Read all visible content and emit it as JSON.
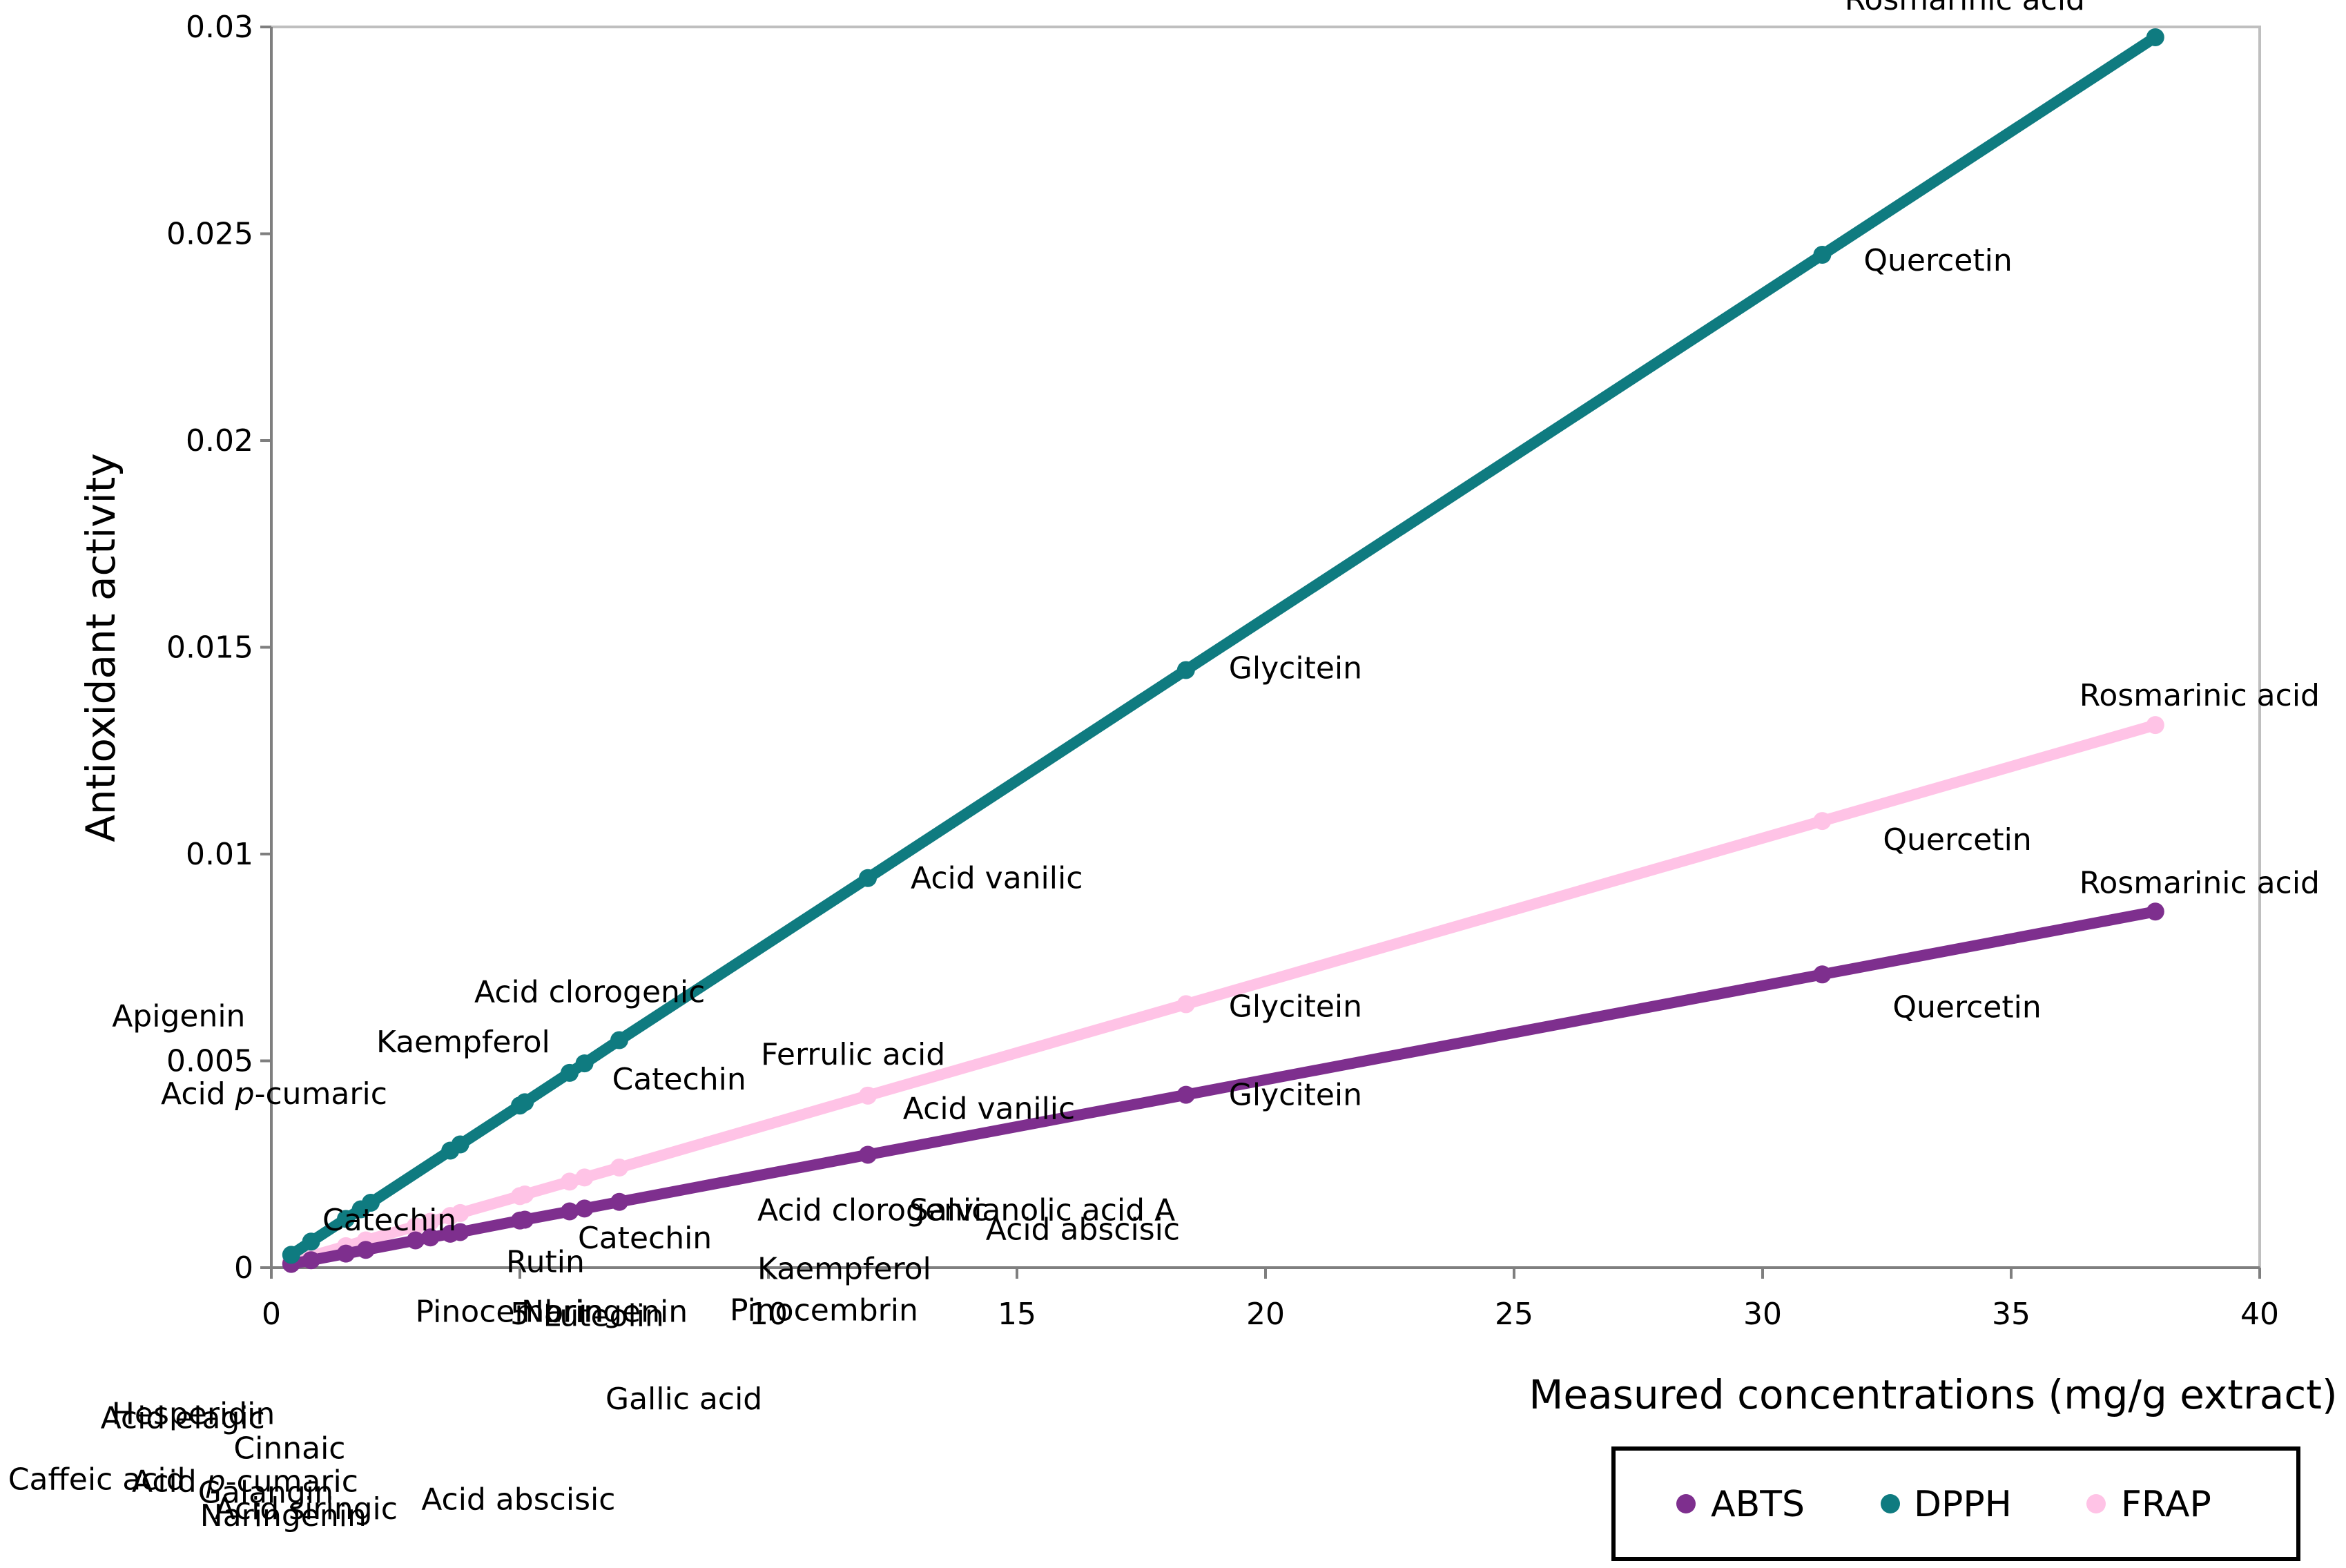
{
  "chart_data": {
    "type": "line",
    "title": "",
    "xlabel": "Measured concentrations (mg/g extract)",
    "ylabel": "Antioxidant activity",
    "xlim": [
      0,
      40
    ],
    "ylim": [
      0,
      0.03
    ],
    "x_ticks": [
      "0",
      "5",
      "10",
      "15",
      "20",
      "25",
      "30",
      "35",
      "40"
    ],
    "y_ticks": [
      "0",
      "0.005",
      "0.01",
      "0.015",
      "0.02",
      "0.025",
      "0.03"
    ],
    "legend_position": "bottom-right",
    "series": [
      {
        "name": "ABTS",
        "color": "#7e2f8e",
        "x": [
          0.4,
          0.8,
          1.5,
          1.9,
          2.9,
          3.2,
          3.6,
          3.8,
          5.0,
          5.1,
          6.0,
          6.3,
          7.0,
          12.0,
          18.4,
          31.2,
          37.9
        ],
        "y": [
          9e-05,
          0.00018,
          0.00034,
          0.00043,
          0.00066,
          0.00073,
          0.00082,
          0.00086,
          0.00114,
          0.00116,
          0.00136,
          0.00143,
          0.00159,
          0.00273,
          0.00418,
          0.00709,
          0.00861
        ]
      },
      {
        "name": "DPPH",
        "color": "#0f7b80",
        "x": [
          0.4,
          0.8,
          1.5,
          1.8,
          2.0,
          3.6,
          3.8,
          5.0,
          5.1,
          6.0,
          6.3,
          7.0,
          12.0,
          18.4,
          31.2,
          37.9
        ],
        "y": [
          0.00031,
          0.00063,
          0.00118,
          0.00141,
          0.00157,
          0.00283,
          0.00298,
          0.00392,
          0.004,
          0.00471,
          0.00494,
          0.0055,
          0.00942,
          0.01445,
          0.02449,
          0.02975
        ]
      },
      {
        "name": "FRAP",
        "color": "#ffc3e6",
        "x": [
          0.4,
          0.8,
          1.5,
          1.9,
          2.9,
          3.2,
          3.6,
          3.8,
          5.0,
          5.1,
          6.0,
          6.3,
          7.0,
          12.0,
          18.4,
          31.2,
          37.9
        ],
        "y": [
          0.00014,
          0.00028,
          0.00052,
          0.00066,
          0.001,
          0.00111,
          0.00125,
          0.00132,
          0.00173,
          0.00177,
          0.00208,
          0.00218,
          0.00242,
          0.00416,
          0.00637,
          0.0108,
          0.01312
        ]
      }
    ],
    "annotations": [
      {
        "text": "Rosmarinic acid",
        "x": 37.9,
        "y": 0.02975
      },
      {
        "text": "Quercetin",
        "x": 31.2,
        "y": 0.02449
      },
      {
        "text": "Glycitein",
        "x": 18.4,
        "y": 0.01445
      },
      {
        "text": "Acid vanilic",
        "x": 12.0,
        "y": 0.00942
      },
      {
        "text": "Acid clorogenic",
        "x": 7.0,
        "y": 0.0055
      },
      {
        "text": "Apigenin",
        "x": 3.6,
        "y": 0.00283
      },
      {
        "text": "Kaempferol",
        "x": 6.0,
        "y": 0.00471
      },
      {
        "text": "Catechin",
        "x": 6.3,
        "y": 0.00494
      },
      {
        "text": "Acid p-cumaric",
        "x": 5.0,
        "y": 0.00392
      },
      {
        "text": "Luteolin",
        "x": 6.3,
        "y": 0.00218
      },
      {
        "text": "Caffeic acid",
        "x": 0.4,
        "y": 0.00031
      },
      {
        "text": "Catechin",
        "x": 2.0,
        "y": 0.00157
      },
      {
        "text": "Rutin",
        "x": 5.0,
        "y": 0.00173
      },
      {
        "text": "Acid elagic",
        "x": 0.8,
        "y": 0.00063
      },
      {
        "text": "Hesperidin",
        "x": 0.4,
        "y": 0.00014
      },
      {
        "text": "Acid siringic",
        "x": 0.8,
        "y": 0.00018
      },
      {
        "text": "Acid p-cumaric",
        "x": 1.5,
        "y": 0.00034
      },
      {
        "text": "Naringenin",
        "x": 1.9,
        "y": 0.00043
      },
      {
        "text": "Pinocembrin",
        "x": 3.8,
        "y": 0.00086
      },
      {
        "text": "Naringenin",
        "x": 6.0,
        "y": 0.00136
      },
      {
        "text": "Cinnaic",
        "x": 3.2,
        "y": 0.00073
      },
      {
        "text": "Galangin",
        "x": 2.9,
        "y": 0.00066
      },
      {
        "text": "Gallic acid",
        "x": 7.0,
        "y": 0.00159
      },
      {
        "text": "Acid abscisic",
        "x": 5.1,
        "y": 0.00116
      },
      {
        "text": "Catechin",
        "x": 7.0,
        "y": 0.00159
      },
      {
        "text": "Acid clorogenic",
        "x": 12.0,
        "y": 0.00273
      },
      {
        "text": "Kaempferol",
        "x": 12.0,
        "y": 0.00273
      },
      {
        "text": "Pinocembrin",
        "x": 12.0,
        "y": 0.00273
      },
      {
        "text": "Salvianolic acid A",
        "x": 12.0,
        "y": 0.00273
      },
      {
        "text": "Ferrulic acid",
        "x": 12.0,
        "y": 0.00416
      },
      {
        "text": "Acid vanilic",
        "x": 18.4,
        "y": 0.00418
      },
      {
        "text": "Acid abscisic",
        "x": 18.4,
        "y": 0.00418
      },
      {
        "text": "Glycitein",
        "x": 18.4,
        "y": 0.00637
      },
      {
        "text": "Glycitein",
        "x": 18.4,
        "y": 0.00418
      },
      {
        "text": "Rosmarinic acid",
        "x": 37.9,
        "y": 0.01312
      },
      {
        "text": "Quercetin",
        "x": 31.2,
        "y": 0.0108
      },
      {
        "text": "Rosmarinic acid",
        "x": 37.9,
        "y": 0.00861
      },
      {
        "text": "Quercetin",
        "x": 31.2,
        "y": 0.00709
      }
    ]
  }
}
